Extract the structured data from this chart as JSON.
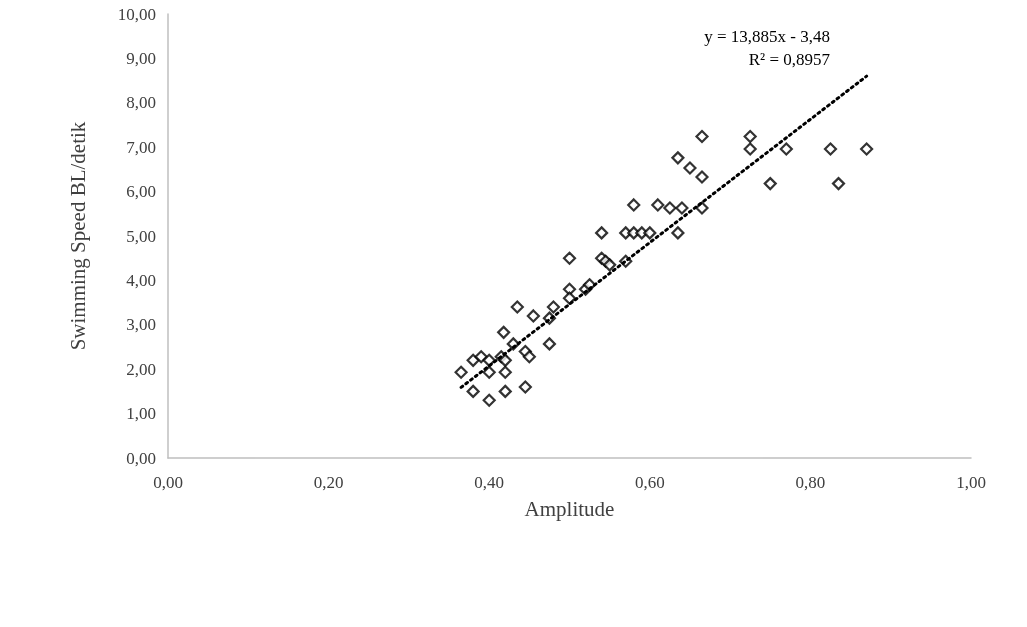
{
  "chart_data": {
    "type": "scatter",
    "xlabel": "Amplitude",
    "ylabel": "Swimming Speed BL/detik",
    "xlim": [
      0,
      1
    ],
    "ylim": [
      0,
      10
    ],
    "xticks": [
      {
        "value": 0,
        "label": "0,00"
      },
      {
        "value": 0.2,
        "label": "0,20"
      },
      {
        "value": 0.4,
        "label": "0,40"
      },
      {
        "value": 0.6,
        "label": "0,60"
      },
      {
        "value": 0.8,
        "label": "0,80"
      },
      {
        "value": 1,
        "label": "1,00"
      }
    ],
    "yticks": [
      {
        "value": 0,
        "label": "0,00"
      },
      {
        "value": 1,
        "label": "1,00"
      },
      {
        "value": 2,
        "label": "2,00"
      },
      {
        "value": 3,
        "label": "3,00"
      },
      {
        "value": 4,
        "label": "4,00"
      },
      {
        "value": 5,
        "label": "5,00"
      },
      {
        "value": 6,
        "label": "6,00"
      },
      {
        "value": 7,
        "label": "7,00"
      },
      {
        "value": 8,
        "label": "8,00"
      },
      {
        "value": 9,
        "label": "9,00"
      },
      {
        "value": 10,
        "label": "10,00"
      }
    ],
    "grid": false,
    "marker": "diamond",
    "series": [
      {
        "color": "#000000",
        "x": [
          0.365,
          0.38,
          0.38,
          0.39,
          0.4,
          0.4,
          0.4,
          0.415,
          0.418,
          0.42,
          0.42,
          0.42,
          0.43,
          0.435,
          0.445,
          0.445,
          0.45,
          0.455,
          0.475,
          0.475,
          0.48,
          0.5,
          0.5,
          0.5,
          0.52,
          0.525,
          0.54,
          0.54,
          0.545,
          0.55,
          0.57,
          0.57,
          0.58,
          0.58,
          0.59,
          0.6,
          0.61,
          0.625,
          0.635,
          0.635,
          0.64,
          0.65,
          0.665,
          0.665,
          0.665,
          0.725,
          0.725,
          0.75,
          0.77,
          0.825,
          0.835,
          0.87
        ],
        "values": [
          1.93,
          2.2,
          1.5,
          2.28,
          2.2,
          1.93,
          1.3,
          2.28,
          2.83,
          2.2,
          1.93,
          1.5,
          2.57,
          3.4,
          2.4,
          1.6,
          2.28,
          3.2,
          3.15,
          2.57,
          3.4,
          4.5,
          3.8,
          3.6,
          3.8,
          3.9,
          5.07,
          4.5,
          4.43,
          4.35,
          5.07,
          4.43,
          5.7,
          5.07,
          5.07,
          5.07,
          5.7,
          5.63,
          6.76,
          5.07,
          5.63,
          6.53,
          7.24,
          6.33,
          5.63,
          7.24,
          6.96,
          6.18,
          6.96,
          6.96,
          6.18,
          6.96
        ]
      },
      {
        "type": "line",
        "color": "#000000",
        "line_style": "dotted",
        "marker": "none",
        "x": [
          0.365,
          0.87
        ],
        "values": [
          1.59,
          8.6
        ]
      }
    ],
    "annotations": [
      "y = 13,885x - 3,48",
      "R² = 0,8957"
    ]
  }
}
